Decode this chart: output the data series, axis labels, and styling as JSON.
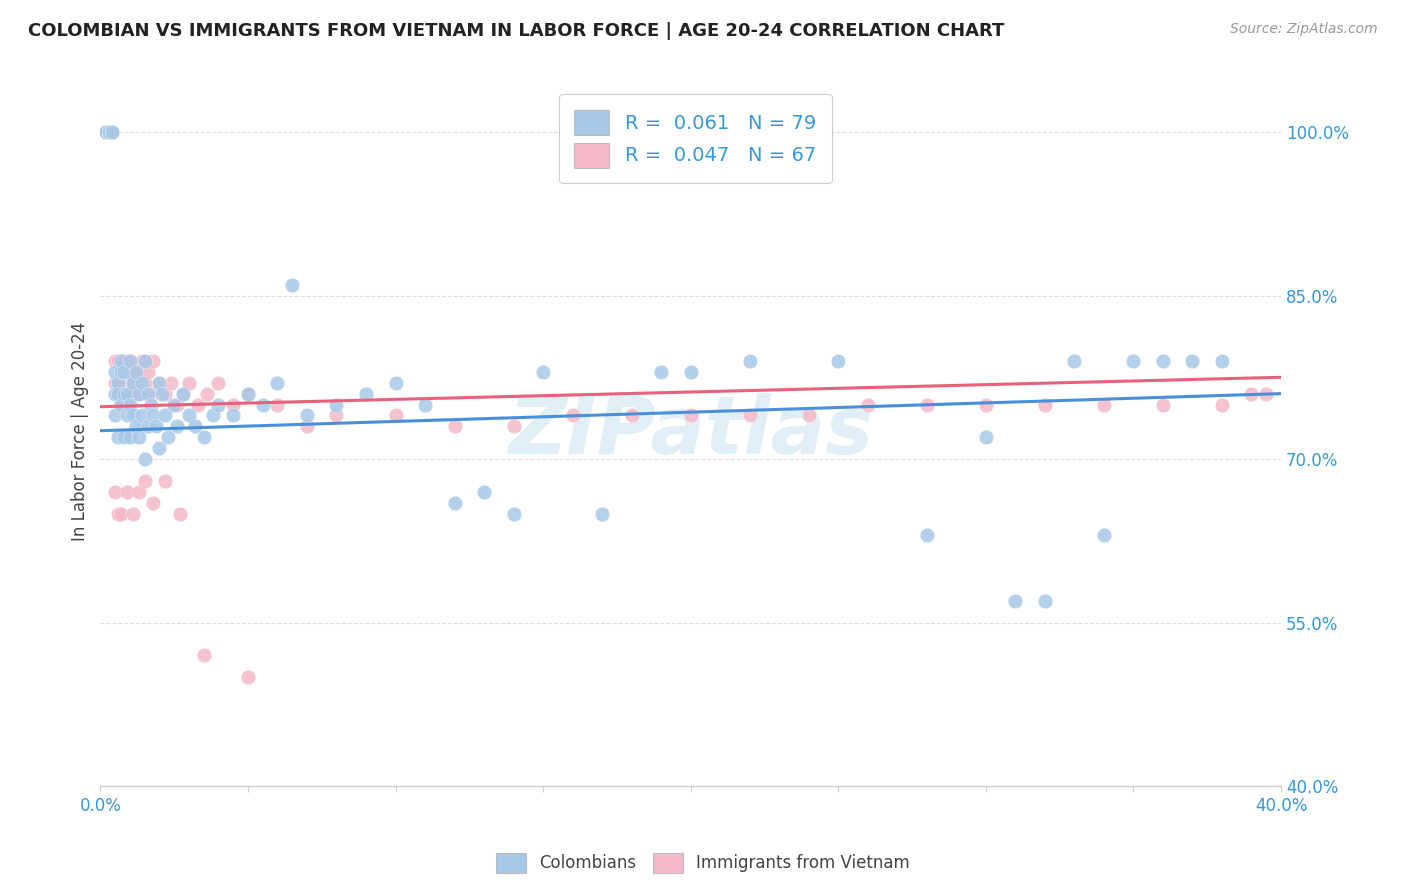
{
  "title": "COLOMBIAN VS IMMIGRANTS FROM VIETNAM IN LABOR FORCE | AGE 20-24 CORRELATION CHART",
  "source": "Source: ZipAtlas.com",
  "ylabel": "In Labor Force | Age 20-24",
  "xlim": [
    0.0,
    0.4
  ],
  "ylim": [
    0.4,
    1.05
  ],
  "yticks": [
    0.4,
    0.55,
    0.7,
    0.85,
    1.0
  ],
  "ytick_labels": [
    "40.0%",
    "55.0%",
    "70.0%",
    "85.0%",
    "100.0%"
  ],
  "xticks": [
    0.0,
    0.05,
    0.1,
    0.15,
    0.2,
    0.25,
    0.3,
    0.35,
    0.4
  ],
  "xtick_labels": [
    "0.0%",
    "",
    "",
    "",
    "",
    "",
    "",
    "",
    "40.0%"
  ],
  "legend_R1": "0.061",
  "legend_N1": "79",
  "legend_R2": "0.047",
  "legend_N2": "67",
  "color_colombian": "#a8c8e8",
  "color_vietnam": "#f4b8c8",
  "color_line_colombian": "#4a90d9",
  "color_line_vietnam": "#e8607a",
  "watermark": "ZIPatlas",
  "blue_scatter_x": [
    0.002,
    0.003,
    0.003,
    0.004,
    0.004,
    0.005,
    0.005,
    0.005,
    0.006,
    0.006,
    0.006,
    0.007,
    0.007,
    0.007,
    0.008,
    0.008,
    0.008,
    0.009,
    0.009,
    0.01,
    0.01,
    0.01,
    0.011,
    0.011,
    0.012,
    0.012,
    0.013,
    0.013,
    0.014,
    0.014,
    0.015,
    0.015,
    0.016,
    0.016,
    0.017,
    0.018,
    0.019,
    0.02,
    0.02,
    0.021,
    0.022,
    0.023,
    0.025,
    0.026,
    0.028,
    0.03,
    0.032,
    0.035,
    0.038,
    0.04,
    0.045,
    0.05,
    0.055,
    0.06,
    0.065,
    0.07,
    0.08,
    0.09,
    0.1,
    0.11,
    0.12,
    0.13,
    0.14,
    0.15,
    0.17,
    0.19,
    0.2,
    0.22,
    0.25,
    0.28,
    0.3,
    0.31,
    0.32,
    0.33,
    0.34,
    0.35,
    0.36,
    0.37,
    0.38
  ],
  "blue_scatter_y": [
    1.0,
    1.0,
    1.0,
    1.0,
    1.0,
    0.78,
    0.76,
    0.74,
    0.77,
    0.76,
    0.72,
    0.78,
    0.75,
    0.79,
    0.76,
    0.78,
    0.72,
    0.76,
    0.74,
    0.79,
    0.75,
    0.72,
    0.77,
    0.74,
    0.78,
    0.73,
    0.76,
    0.72,
    0.77,
    0.74,
    0.79,
    0.7,
    0.76,
    0.73,
    0.75,
    0.74,
    0.73,
    0.77,
    0.71,
    0.76,
    0.74,
    0.72,
    0.75,
    0.73,
    0.76,
    0.74,
    0.73,
    0.72,
    0.74,
    0.75,
    0.74,
    0.76,
    0.75,
    0.77,
    0.86,
    0.74,
    0.75,
    0.76,
    0.77,
    0.75,
    0.66,
    0.67,
    0.65,
    0.78,
    0.65,
    0.78,
    0.78,
    0.79,
    0.79,
    0.63,
    0.72,
    0.57,
    0.57,
    0.79,
    0.63,
    0.79,
    0.79,
    0.79,
    0.79
  ],
  "pink_scatter_x": [
    0.002,
    0.003,
    0.003,
    0.004,
    0.005,
    0.005,
    0.006,
    0.006,
    0.007,
    0.007,
    0.008,
    0.008,
    0.009,
    0.009,
    0.01,
    0.01,
    0.011,
    0.012,
    0.013,
    0.014,
    0.015,
    0.016,
    0.017,
    0.018,
    0.02,
    0.022,
    0.024,
    0.026,
    0.028,
    0.03,
    0.033,
    0.036,
    0.04,
    0.045,
    0.05,
    0.06,
    0.07,
    0.08,
    0.1,
    0.12,
    0.14,
    0.16,
    0.18,
    0.2,
    0.22,
    0.24,
    0.26,
    0.28,
    0.3,
    0.32,
    0.34,
    0.36,
    0.38,
    0.39,
    0.395,
    0.005,
    0.006,
    0.007,
    0.009,
    0.011,
    0.013,
    0.015,
    0.018,
    0.022,
    0.027,
    0.035,
    0.05
  ],
  "pink_scatter_y": [
    1.0,
    1.0,
    1.0,
    1.0,
    0.79,
    0.77,
    0.79,
    0.76,
    0.78,
    0.75,
    0.79,
    0.77,
    0.78,
    0.75,
    0.79,
    0.76,
    0.77,
    0.78,
    0.76,
    0.79,
    0.77,
    0.78,
    0.76,
    0.79,
    0.77,
    0.76,
    0.77,
    0.75,
    0.76,
    0.77,
    0.75,
    0.76,
    0.77,
    0.75,
    0.76,
    0.75,
    0.73,
    0.74,
    0.74,
    0.73,
    0.73,
    0.74,
    0.74,
    0.74,
    0.74,
    0.74,
    0.75,
    0.75,
    0.75,
    0.75,
    0.75,
    0.75,
    0.75,
    0.76,
    0.76,
    0.67,
    0.65,
    0.65,
    0.67,
    0.65,
    0.67,
    0.68,
    0.66,
    0.68,
    0.65,
    0.52,
    0.5
  ],
  "blue_trend_x0": 0.0,
  "blue_trend_x1": 0.4,
  "blue_trend_y0": 0.726,
  "blue_trend_y1": 0.76,
  "pink_trend_x0": 0.0,
  "pink_trend_x1": 0.4,
  "pink_trend_y0": 0.748,
  "pink_trend_y1": 0.775
}
